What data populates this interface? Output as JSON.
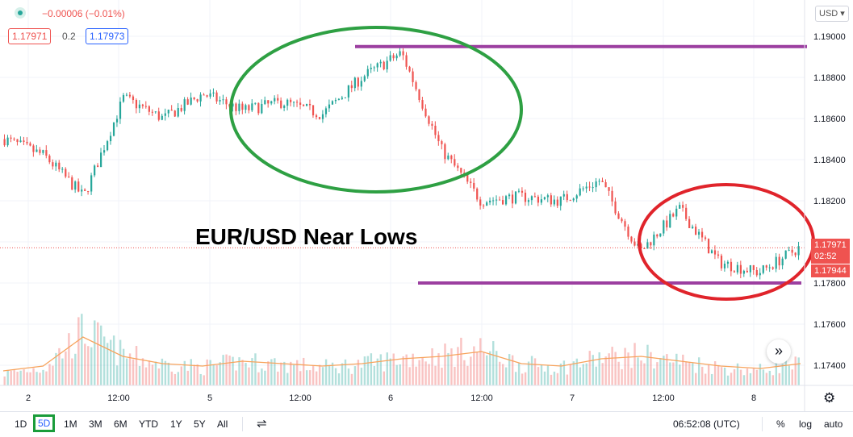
{
  "header": {
    "change_text": "−0.00006 (−0.01%)",
    "bid": "1.17971",
    "spread": "0.2",
    "ask": "1.17973",
    "currency": "USD"
  },
  "annotation": {
    "title": "EUR/USD Near Lows"
  },
  "price_axis": {
    "current_price": "1.17971",
    "countdown": "02:52",
    "low_marker": "1.17944"
  },
  "colors": {
    "up": "#26a69a",
    "down": "#ef5350",
    "accent": "#2962ff",
    "green_ellipse": "#2ea043",
    "red_ellipse": "#e0242b",
    "level_line": "#9c3fa0"
  },
  "bottom_bar": {
    "ranges": [
      "1D",
      "5D",
      "1M",
      "3M",
      "6M",
      "YTD",
      "1Y",
      "5Y",
      "All"
    ],
    "active_range": "5D",
    "clock": "06:52:08 (UTC)",
    "percent_label": "%",
    "log_label": "log",
    "auto_label": "auto"
  },
  "chart_data": {
    "type": "line",
    "title": "EUR/USD Near Lows",
    "xlabel": "",
    "ylabel": "",
    "x_ticks": [
      "2",
      "12:00",
      "5",
      "12:00",
      "6",
      "12:00",
      "7",
      "12:00",
      "8"
    ],
    "y_ticks": [
      "1.19000",
      "1.18800",
      "1.18600",
      "1.18400",
      "1.18200",
      "1.18000",
      "1.17800",
      "1.17600",
      "1.17400"
    ],
    "ylim": [
      1.1731,
      1.1915
    ],
    "x": [
      "2 00:00",
      "2 06:00",
      "2 12:00",
      "5 00:00",
      "5 06:00",
      "5 12:00",
      "5 18:00",
      "6 00:00",
      "6 03:00",
      "6 06:00",
      "6 09:00",
      "6 12:00",
      "6 18:00",
      "7 00:00",
      "7 06:00",
      "7 12:00",
      "7 15:00",
      "7 18:00",
      "8 00:00",
      "8 03:00",
      "8 06:00"
    ],
    "values": [
      1.185,
      1.1842,
      1.1822,
      1.187,
      1.186,
      1.1872,
      1.1864,
      1.1868,
      1.1862,
      1.188,
      1.1892,
      1.1845,
      1.182,
      1.1822,
      1.182,
      1.183,
      1.1795,
      1.1816,
      1.179,
      1.1785,
      1.1797
    ],
    "volume_relative": [
      0.2,
      0.3,
      0.9,
      0.5,
      0.35,
      0.3,
      0.4,
      0.35,
      0.3,
      0.35,
      0.45,
      0.5,
      0.6,
      0.35,
      0.3,
      0.45,
      0.5,
      0.4,
      0.3,
      0.25,
      0.35
    ],
    "horizontal_levels": [
      1.1895,
      1.178
    ],
    "grid": true,
    "legend": "none"
  }
}
